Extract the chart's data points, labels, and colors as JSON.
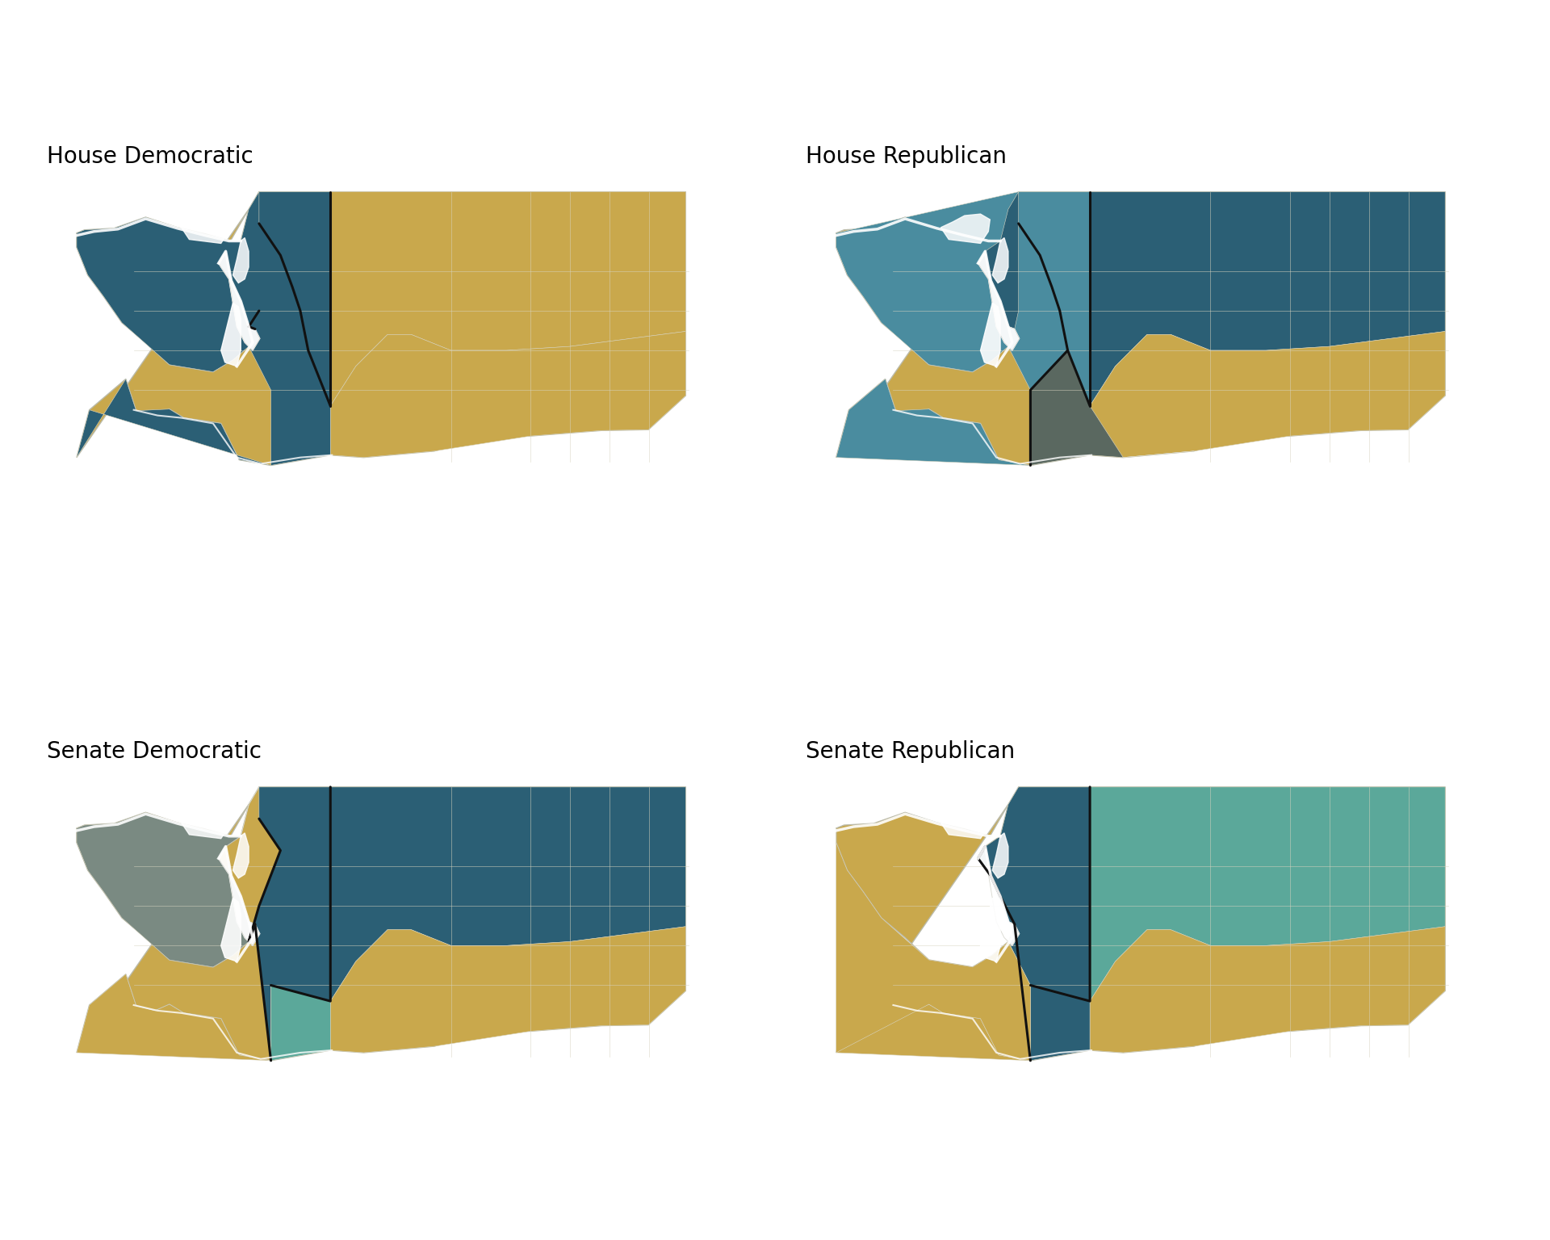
{
  "title_house_dem": "House Democratic",
  "title_house_rep": "House Republican",
  "title_senate_dem": "Senate Democratic",
  "title_senate_rep": "Senate Republican",
  "background_color": "#ffffff",
  "colors": {
    "dark_teal": "#2B5F75",
    "mid_teal": "#4A8C9F",
    "light_teal": "#5BA89A",
    "gold": "#C9A84C",
    "gray": "#7A8A82",
    "dark_gray": "#5A6860",
    "border_black": "#111111",
    "border_white": "#FFFFFF",
    "border_light": "#D8D4C0"
  },
  "title_fontsize": 20,
  "fig_width": 19.2,
  "fig_height": 15.36,
  "dpi": 100
}
